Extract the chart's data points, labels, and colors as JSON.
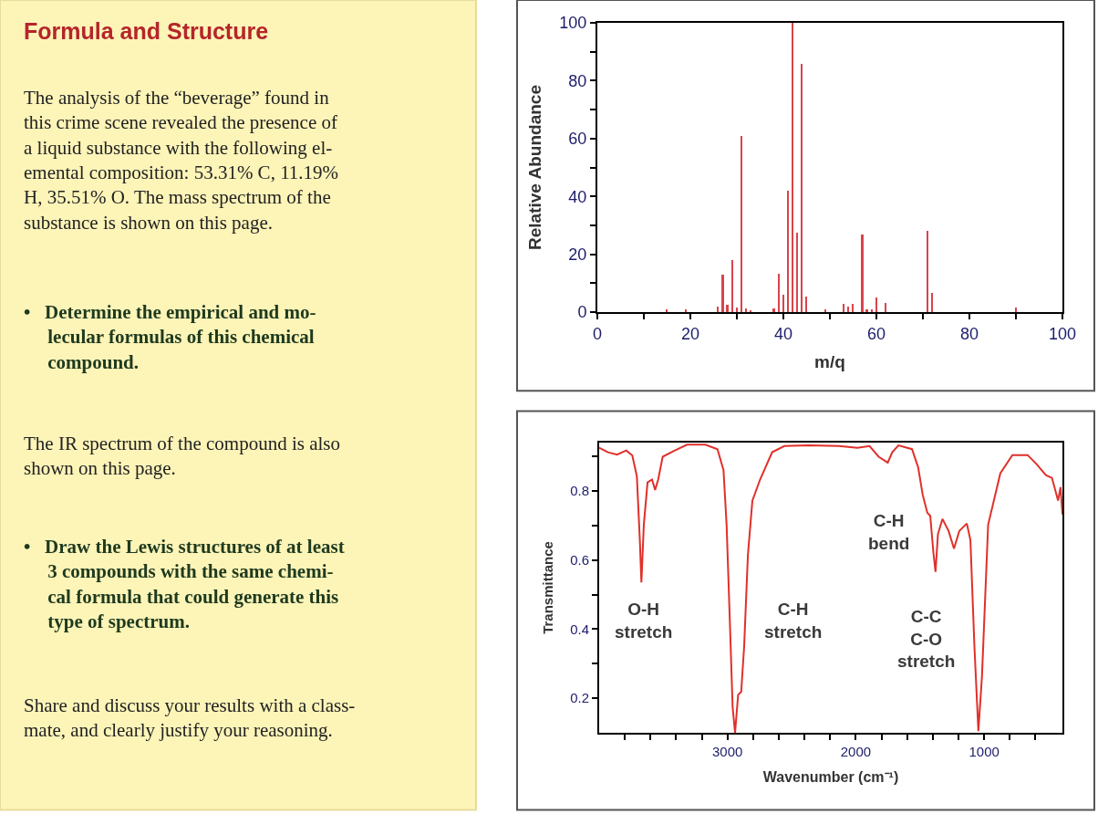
{
  "chart_data": [
    {
      "type": "other",
      "title": "Formula and Structure",
      "annotations": [
        "The analysis of the “beverage” found in\nthis crime scene revealed the presence of\na liquid substance with the following el-\nemental composition: 53.31% C, 11.19%\nH, 35.51% O. The mass spectrum of the\nsubstance is shown on this page.",
        "•   Determine the empirical and mo-\n     lecular formulas of this chemical\n     compound.",
        "The IR spectrum of the compound is also\nshown on this page.",
        "•   Draw the Lewis structures of at least\n     3 compounds with the same chemi-\n     cal formula that could generate this\n     type of spectrum.",
        "Share and discuss your results with a class-\nmate, and clearly justify your reasoning."
      ]
    },
    {
      "type": "bar",
      "xlabel": "m/q",
      "ylabel": "Relative Abundance",
      "x": [
        15,
        19,
        26,
        27,
        28,
        29,
        30,
        31,
        32,
        33,
        38,
        39,
        40,
        41,
        42,
        43,
        44,
        45,
        49,
        53,
        54,
        55,
        57,
        58,
        59,
        60,
        62,
        71,
        72,
        90
      ],
      "values": [
        0.8,
        0.8,
        2,
        13,
        2.5,
        18,
        1.6,
        61,
        1.2,
        0.7,
        1.2,
        13.4,
        6,
        42,
        100,
        27.6,
        85.8,
        5.5,
        0.8,
        2.7,
        2,
        2.7,
        26.7,
        1,
        0.8,
        4.9,
        3.3,
        28,
        6.5,
        1.6
      ],
      "color": "#d9434a",
      "xlim": [
        0,
        100
      ],
      "ylim": [
        0,
        100
      ],
      "xticks": [
        0,
        {
          "value": 10,
          "label": null
        },
        20,
        {
          "value": 30,
          "label": null
        },
        40,
        {
          "value": 50,
          "label": null
        },
        60,
        {
          "value": 70,
          "label": null
        },
        80,
        {
          "value": 90,
          "label": null
        },
        100
      ],
      "yticks": [
        0,
        {
          "value": 10,
          "label": null
        },
        20,
        {
          "value": 30,
          "label": null
        },
        40,
        {
          "value": 50,
          "label": null
        },
        60,
        {
          "value": 70,
          "label": null
        },
        80,
        {
          "value": 90,
          "label": null
        },
        100
      ]
    },
    {
      "type": "line",
      "xlabel": "Wavenumber (cm⁻¹)",
      "ylabel": "Transmittance",
      "color": "#e0302a",
      "x": [
        4000,
        3931,
        3860,
        3789,
        3742,
        3706,
        3683,
        3671,
        3652,
        3623,
        3588,
        3564,
        3540,
        3505,
        3410,
        3315,
        3173,
        3078,
        3031,
        3007,
        2983,
        2960,
        2941,
        2917,
        2893,
        2870,
        2841,
        2806,
        2746,
        2652,
        2557,
        2367,
        2130,
        1988,
        1893,
        1822,
        1751,
        1716,
        1668,
        1562,
        1514,
        1479,
        1443,
        1420,
        1396,
        1379,
        1360,
        1325,
        1277,
        1235,
        1194,
        1135,
        1107,
        1076,
        1045,
        1017,
        969,
        874,
        780,
        661,
        590,
        519,
        472,
        424,
        405,
        390
      ],
      "values": [
        0.925,
        0.912,
        0.905,
        0.917,
        0.903,
        0.842,
        0.658,
        0.535,
        0.702,
        0.825,
        0.833,
        0.803,
        0.833,
        0.899,
        0.917,
        0.934,
        0.934,
        0.921,
        0.86,
        0.702,
        0.439,
        0.175,
        0.1,
        0.21,
        0.219,
        0.351,
        0.614,
        0.772,
        0.833,
        0.912,
        0.93,
        0.932,
        0.93,
        0.925,
        0.93,
        0.899,
        0.882,
        0.912,
        0.932,
        0.921,
        0.868,
        0.789,
        0.737,
        0.728,
        0.623,
        0.566,
        0.675,
        0.719,
        0.684,
        0.633,
        0.684,
        0.706,
        0.658,
        0.351,
        0.105,
        0.263,
        0.702,
        0.851,
        0.904,
        0.904,
        0.877,
        0.846,
        0.838,
        0.772,
        0.811,
        0.732
      ],
      "xlim": [
        4000,
        390
      ],
      "ylim": [
        0.1,
        0.94
      ],
      "xticks": [
        {
          "value": 3800,
          "label": null
        },
        {
          "value": 3600,
          "label": null
        },
        {
          "value": 3400,
          "label": null
        },
        {
          "value": 3200,
          "label": null
        },
        3000,
        {
          "value": 2800,
          "label": null
        },
        {
          "value": 2600,
          "label": null
        },
        {
          "value": 2400,
          "label": null
        },
        {
          "value": 2200,
          "label": null
        },
        2000,
        {
          "value": 1800,
          "label": null
        },
        {
          "value": 1600,
          "label": null
        },
        {
          "value": 1400,
          "label": null
        },
        {
          "value": 1200,
          "label": null
        },
        1000,
        {
          "value": 800,
          "label": null
        },
        {
          "value": 600,
          "label": null
        }
      ],
      "yticks": [
        0.2,
        {
          "value": 0.3,
          "label": null
        },
        0.4,
        {
          "value": 0.5,
          "label": null
        },
        0.6,
        {
          "value": 0.7,
          "label": null
        },
        0.8,
        {
          "value": 0.9,
          "label": null
        }
      ],
      "annotations": [
        "O-H\nstretch",
        "C-H\nstretch",
        "C-H\nbend",
        "C-C\nC-O\nstretch"
      ]
    }
  ]
}
